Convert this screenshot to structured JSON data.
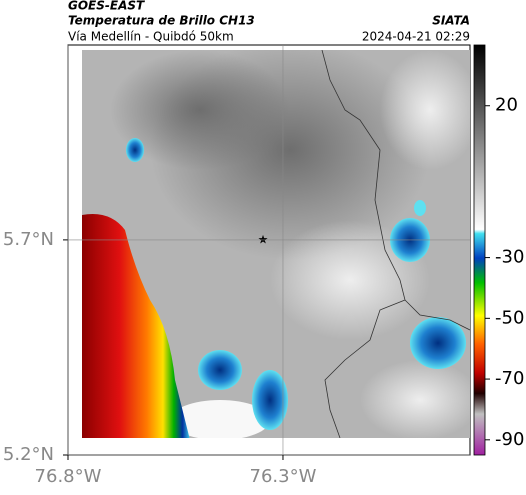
{
  "header": {
    "title": "GOES-EAST",
    "subtitle": "Temperatura de Brillo CH13",
    "location": "Vía Medellín - Quibdó 50km",
    "source": "SIATA",
    "datetime": "2024-04-21 02:29"
  },
  "map": {
    "ylim": [
      5.2,
      6.153
    ],
    "xlim": [
      -76.8,
      -75.865
    ],
    "yticks": [
      {
        "value": 5.7,
        "label": "5.7°N"
      },
      {
        "value": 5.2,
        "label": "5.2°N"
      }
    ],
    "xticks": [
      {
        "value": -76.8,
        "label": "76.8°W"
      },
      {
        "value": -76.3,
        "label": "76.3°W"
      }
    ]
  },
  "colorbar": {
    "lim": [
      -95,
      40
    ],
    "ticks": [
      20,
      -30,
      -50,
      -70,
      -90
    ]
  }
}
